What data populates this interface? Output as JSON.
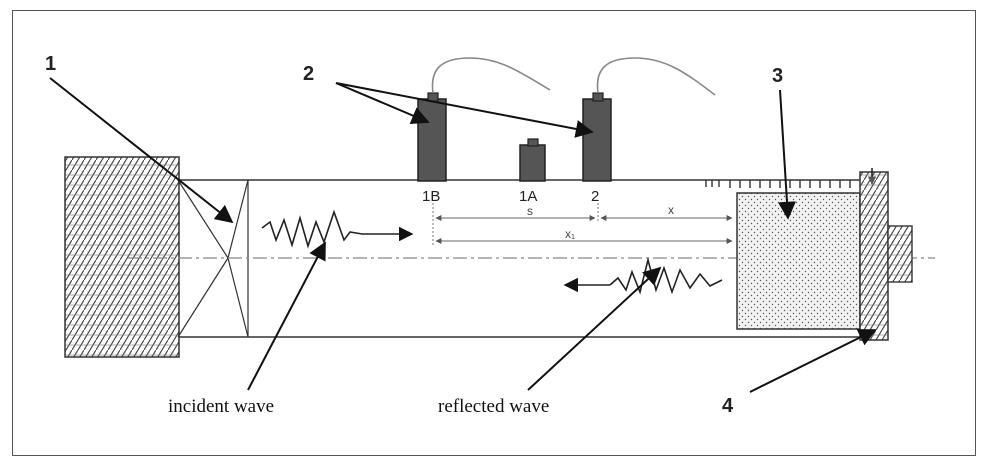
{
  "labels": {
    "n1": "1",
    "n2": "2",
    "n3": "3",
    "n4": "4",
    "pos_1b": "1B",
    "pos_1a": "1A",
    "pos_2": "2",
    "dim_s": "s",
    "dim_x": "x",
    "dim_x1": "x₁",
    "incident": "incident wave",
    "reflected": "reflected wave"
  }
}
